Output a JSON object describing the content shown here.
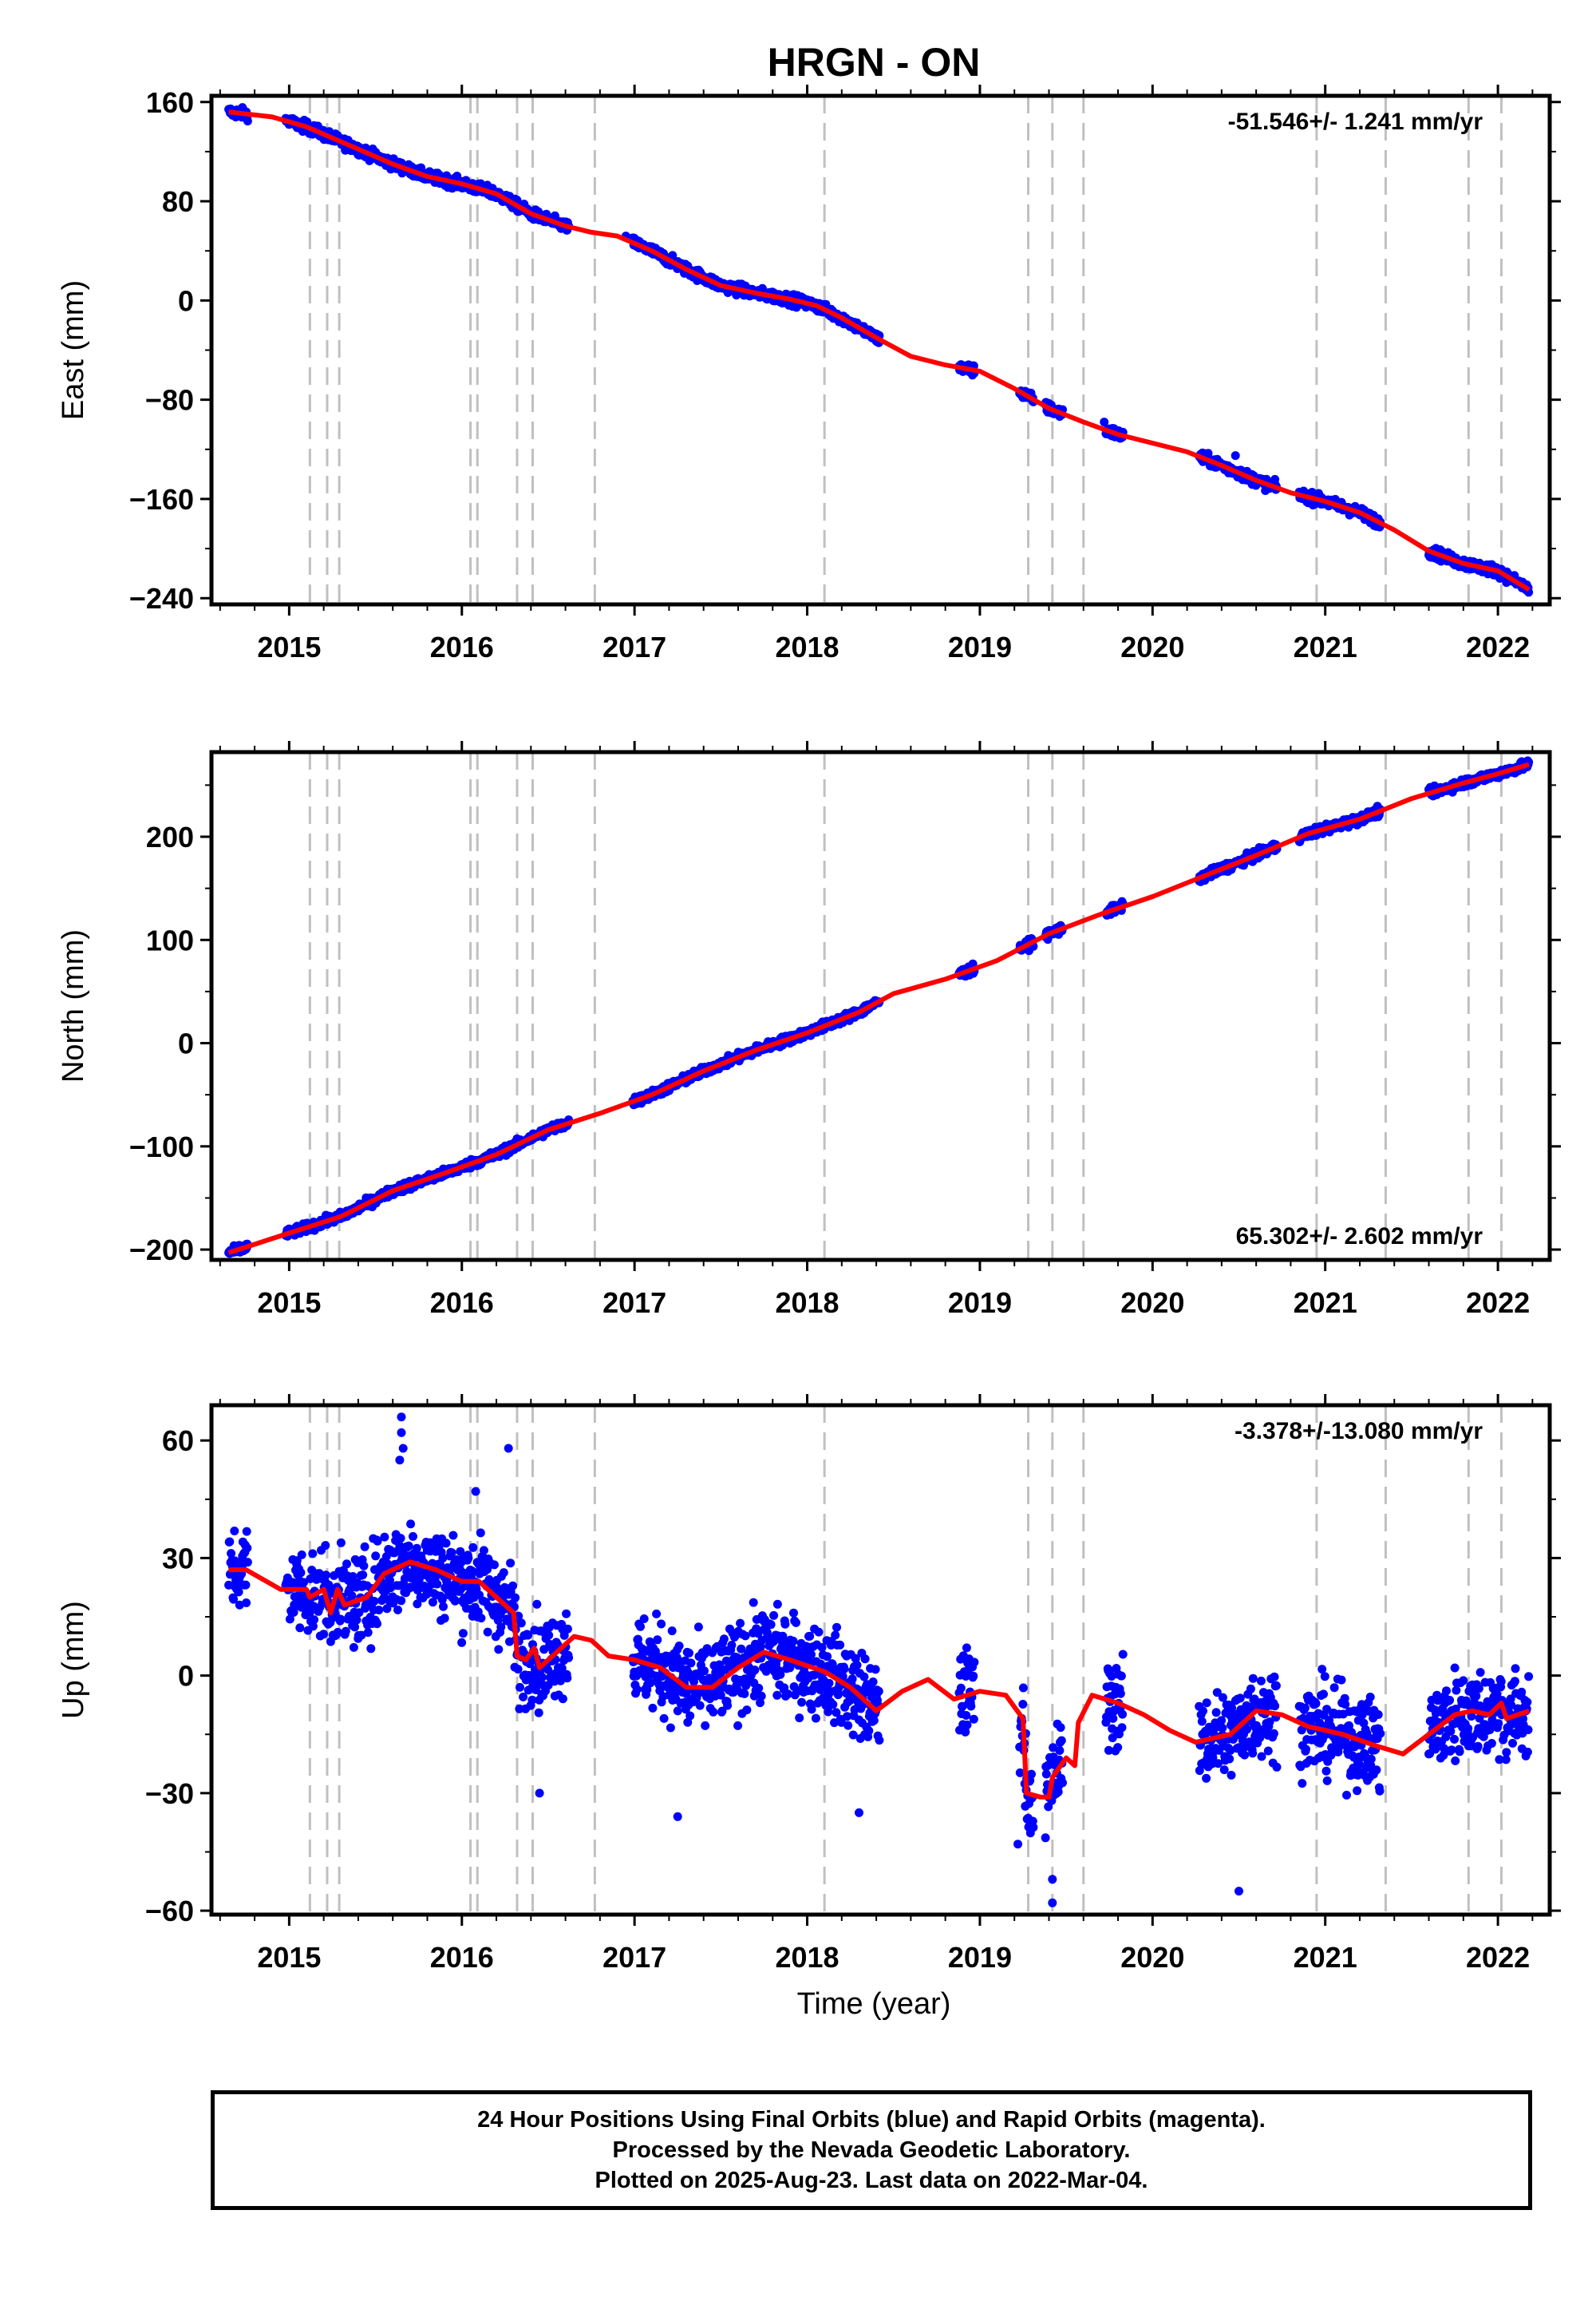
{
  "title": "HRGN - ON",
  "xlabel": "Time (year)",
  "caption": {
    "line1": "24 Hour Positions Using Final Orbits (blue) and Rapid Orbits (magenta).",
    "line2": "Processed by the Nevada Geodetic Laboratory.",
    "line3": "Plotted on 2025-Aug-23. Last data on 2022-Mar-04."
  },
  "colors": {
    "data": "#0000ff",
    "model": "#ff0000",
    "event_line": "#c0c0c0",
    "frame": "#000000"
  },
  "chart_data": [
    {
      "type": "scatter",
      "panel": "east",
      "ylabel": "East (mm)",
      "rate_text": "-51.546+/- 1.241 mm/yr",
      "xlim": [
        2014.55,
        2022.3
      ],
      "ylim": [
        -245,
        165
      ],
      "yticks": [
        160,
        80,
        0,
        -80,
        -160,
        -240
      ],
      "ytick_labels": [
        "160",
        "80",
        "0",
        "−80",
        "−160",
        "−240"
      ],
      "xticks": [
        2015,
        2016,
        2017,
        2018,
        2019,
        2020,
        2021,
        2022
      ],
      "xtick_labels": [
        "2015",
        "2016",
        "2017",
        "2018",
        "2019",
        "2020",
        "2021",
        "2022"
      ],
      "series": [
        {
          "kind": "model",
          "x": [
            2014.65,
            2014.9,
            2015.1,
            2015.3,
            2015.6,
            2015.8,
            2016.0,
            2016.2,
            2016.4,
            2016.6,
            2016.75,
            2016.9,
            2017.1,
            2017.3,
            2017.5,
            2017.7,
            2017.9,
            2018.05,
            2018.2,
            2018.4,
            2018.6,
            2018.8,
            2019.0,
            2019.2,
            2019.4,
            2019.6,
            2019.8,
            2020.0,
            2020.2,
            2020.4,
            2020.6,
            2020.8,
            2021.0,
            2021.2,
            2021.4,
            2021.6,
            2021.8,
            2022.0,
            2022.18
          ],
          "y": [
            152,
            148,
            140,
            128,
            110,
            100,
            94,
            86,
            70,
            60,
            55,
            52,
            40,
            25,
            12,
            6,
            1,
            -4,
            -14,
            -30,
            -45,
            -52,
            -57,
            -71,
            -87,
            -98,
            -108,
            -115,
            -122,
            -133,
            -145,
            -155,
            -162,
            -171,
            -185,
            -202,
            -212,
            -218,
            -233
          ]
        },
        {
          "kind": "data",
          "segments": [
            [
              2014.65,
              2014.76
            ],
            [
              2014.98,
              2016.62
            ],
            [
              2016.99,
              2018.42
            ],
            [
              2018.88,
              2018.97
            ],
            [
              2019.23,
              2019.31
            ],
            [
              2019.38,
              2019.48
            ],
            [
              2019.73,
              2019.83
            ],
            [
              2020.27,
              2020.72
            ],
            [
              2020.85,
              2021.32
            ],
            [
              2021.6,
              2022.18
            ]
          ],
          "scatter_mm": 3,
          "outliers": [
            [
              2016.95,
              52
            ],
            [
              2019.72,
              -98
            ],
            [
              2020.48,
              -125
            ]
          ]
        }
      ]
    },
    {
      "type": "scatter",
      "panel": "north",
      "ylabel": "North (mm)",
      "rate_text": "65.302+/- 2.602 mm/yr",
      "xlim": [
        2014.55,
        2022.3
      ],
      "ylim": [
        -210,
        282
      ],
      "yticks": [
        200,
        100,
        0,
        -100,
        -200
      ],
      "ytick_labels": [
        "200",
        "100",
        "0",
        "−100",
        "−200"
      ],
      "xticks": [
        2015,
        2016,
        2017,
        2018,
        2019,
        2020,
        2021,
        2022
      ],
      "xtick_labels": [
        "2015",
        "2016",
        "2017",
        "2018",
        "2019",
        "2020",
        "2021",
        "2022"
      ],
      "series": [
        {
          "kind": "model",
          "x": [
            2014.65,
            2015.0,
            2015.3,
            2015.6,
            2015.9,
            2016.2,
            2016.5,
            2016.8,
            2017.1,
            2017.4,
            2017.7,
            2018.0,
            2018.3,
            2018.5,
            2018.8,
            2019.1,
            2019.4,
            2019.7,
            2020.0,
            2020.3,
            2020.6,
            2020.9,
            2021.2,
            2021.5,
            2021.8,
            2022.0,
            2022.18
          ],
          "y": [
            -203,
            -184,
            -168,
            -143,
            -126,
            -108,
            -84,
            -68,
            -50,
            -27,
            -7,
            10,
            30,
            48,
            62,
            80,
            106,
            125,
            142,
            162,
            182,
            203,
            217,
            237,
            252,
            261,
            270
          ]
        },
        {
          "kind": "data",
          "segments": [
            [
              2014.65,
              2014.76
            ],
            [
              2014.98,
              2016.62
            ],
            [
              2016.99,
              2018.42
            ],
            [
              2018.88,
              2018.97
            ],
            [
              2019.23,
              2019.31
            ],
            [
              2019.38,
              2019.48
            ],
            [
              2019.73,
              2019.83
            ],
            [
              2020.27,
              2020.72
            ],
            [
              2020.85,
              2021.32
            ],
            [
              2021.6,
              2022.18
            ]
          ],
          "scatter_mm": 3,
          "outliers": []
        }
      ]
    },
    {
      "type": "scatter",
      "panel": "up",
      "ylabel": "Up (mm)",
      "rate_text": "-3.378+/-13.080 mm/yr",
      "xlim": [
        2014.55,
        2022.3
      ],
      "ylim": [
        -61,
        69
      ],
      "yticks": [
        60,
        30,
        0,
        -30,
        -60
      ],
      "ytick_labels": [
        "60",
        "30",
        "0",
        "−30",
        "−60"
      ],
      "xticks": [
        2015,
        2016,
        2017,
        2018,
        2019,
        2020,
        2021,
        2022
      ],
      "xtick_labels": [
        "2015",
        "2016",
        "2017",
        "2018",
        "2019",
        "2020",
        "2021",
        "2022"
      ],
      "series": [
        {
          "kind": "model",
          "x": [
            2014.65,
            2014.75,
            2014.95,
            2015.1,
            2015.12,
            2015.2,
            2015.24,
            2015.28,
            2015.32,
            2015.45,
            2015.55,
            2015.7,
            2015.85,
            2016.0,
            2016.1,
            2016.2,
            2016.3,
            2016.32,
            2016.37,
            2016.42,
            2016.45,
            2016.55,
            2016.65,
            2016.75,
            2016.85,
            2017.0,
            2017.15,
            2017.3,
            2017.45,
            2017.6,
            2017.75,
            2017.9,
            2018.1,
            2018.25,
            2018.4,
            2018.55,
            2018.7,
            2018.85,
            2019.0,
            2019.15,
            2019.25,
            2019.27,
            2019.35,
            2019.4,
            2019.42,
            2019.5,
            2019.55,
            2019.57,
            2019.65,
            2019.8,
            2019.95,
            2020.1,
            2020.25,
            2020.45,
            2020.6,
            2020.75,
            2020.9,
            2021.1,
            2021.3,
            2021.45,
            2021.6,
            2021.75,
            2021.85,
            2021.95,
            2022.02,
            2022.05,
            2022.18
          ],
          "y": [
            27,
            27,
            22,
            22,
            20,
            22,
            16,
            22,
            18,
            20,
            26,
            29,
            27,
            24,
            24,
            20,
            16,
            5,
            4,
            7,
            2,
            6,
            10,
            9,
            5,
            4,
            2,
            -3,
            -3,
            2,
            6,
            4,
            1,
            -3,
            -9,
            -4,
            -1,
            -6,
            -4,
            -5,
            -11,
            -30,
            -31,
            -31,
            -26,
            -21,
            -23,
            -12,
            -5,
            -7,
            -10,
            -14,
            -17,
            -15,
            -9,
            -10,
            -13,
            -15,
            -18,
            -20,
            -15,
            -10,
            -9,
            -10,
            -7,
            -11,
            -9
          ]
        },
        {
          "kind": "data",
          "segments": [
            [
              2014.65,
              2014.76
            ],
            [
              2014.98,
              2016.62
            ],
            [
              2016.99,
              2018.42
            ],
            [
              2018.88,
              2018.97
            ],
            [
              2019.23,
              2019.31
            ],
            [
              2019.38,
              2019.48
            ],
            [
              2019.73,
              2019.83
            ],
            [
              2020.27,
              2020.72
            ],
            [
              2020.85,
              2021.32
            ],
            [
              2021.6,
              2022.18
            ]
          ],
          "scatter_mm": 8,
          "outliers": [
            [
              2015.65,
              66
            ],
            [
              2015.65,
              62
            ],
            [
              2015.66,
              58
            ],
            [
              2015.64,
              55
            ],
            [
              2016.27,
              58
            ],
            [
              2016.08,
              47
            ],
            [
              2016.45,
              -30
            ],
            [
              2019.22,
              -43
            ],
            [
              2019.42,
              -58
            ],
            [
              2019.42,
              -52
            ],
            [
              2020.5,
              -55
            ],
            [
              2018.3,
              -35
            ],
            [
              2017.25,
              -36
            ]
          ]
        }
      ]
    }
  ],
  "event_lines": [
    2015.12,
    2015.22,
    2015.29,
    2016.05,
    2016.09,
    2016.32,
    2016.41,
    2016.77,
    2018.1,
    2019.28,
    2019.42,
    2019.6,
    2020.95,
    2021.35,
    2021.83,
    2022.02
  ]
}
